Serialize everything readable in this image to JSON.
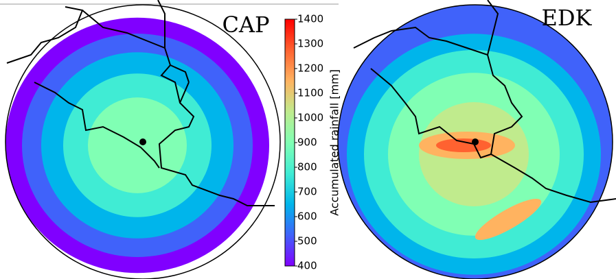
{
  "panels": [
    {
      "label": "CAP"
    },
    {
      "label": "EDK"
    }
  ],
  "colorbar": {
    "label": "Accumulated rainfall [mm]",
    "lim": [
      400,
      1400
    ],
    "ticks": [
      400,
      500,
      600,
      700,
      800,
      900,
      1000,
      1100,
      1200,
      1300,
      1400
    ],
    "colors": [
      "#8000ff",
      "#4062fa",
      "#00b5eb",
      "#40ecd4",
      "#80ffb4",
      "#c0eb8d",
      "#ffb360",
      "#ff6230",
      "#ff0000"
    ]
  }
}
